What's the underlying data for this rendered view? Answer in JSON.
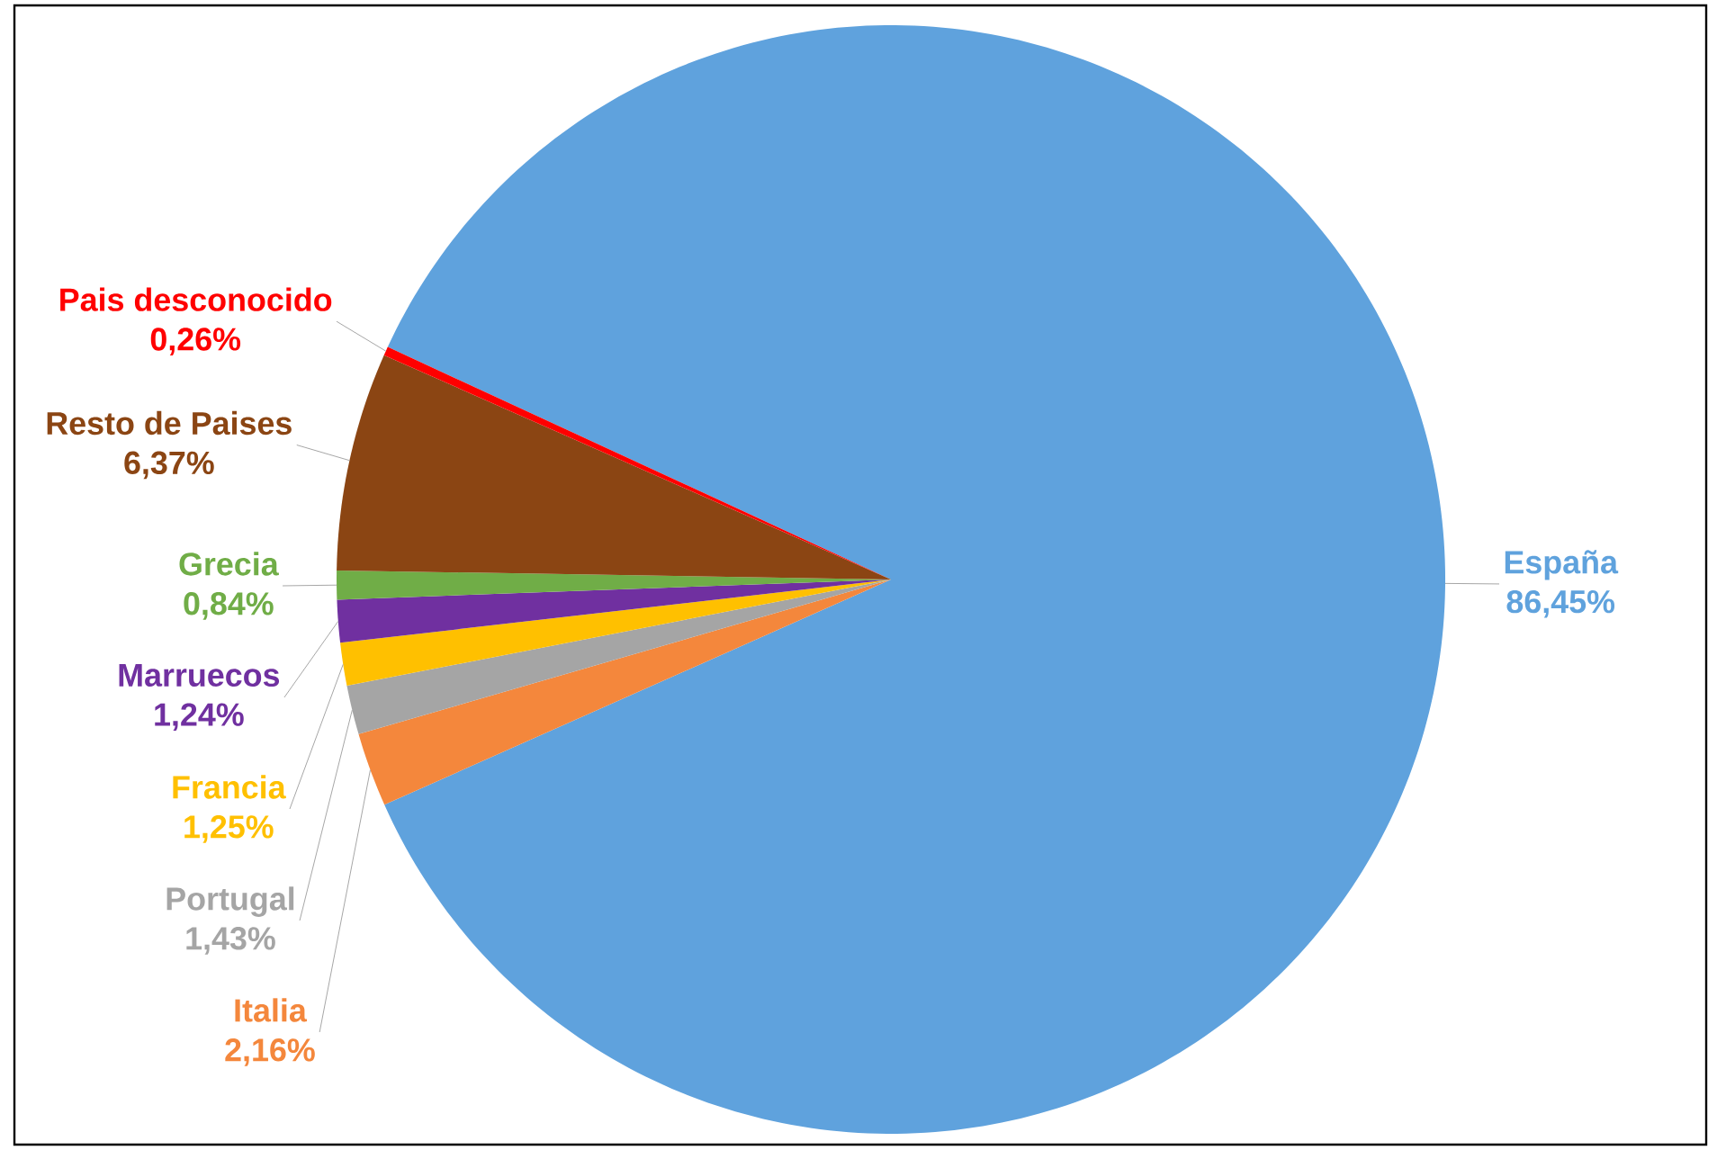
{
  "chart_data": {
    "type": "pie",
    "categories": [
      "España",
      "Italia",
      "Portugal",
      "Francia",
      "Marruecos",
      "Grecia",
      "Resto de Paises",
      "Pais desconocido"
    ],
    "values": [
      86.45,
      2.16,
      1.43,
      1.25,
      1.24,
      0.84,
      6.37,
      0.26
    ],
    "colors": [
      "#5fa2dd",
      "#f4873c",
      "#a5a5a5",
      "#ffc000",
      "#7030a0",
      "#70ad47",
      "#8b4513",
      "#ff0000"
    ],
    "value_labels": [
      "86,45%",
      "2,16%",
      "1,43%",
      "1,25%",
      "1,24%",
      "0,84%",
      "6,37%",
      "0,26%"
    ]
  }
}
